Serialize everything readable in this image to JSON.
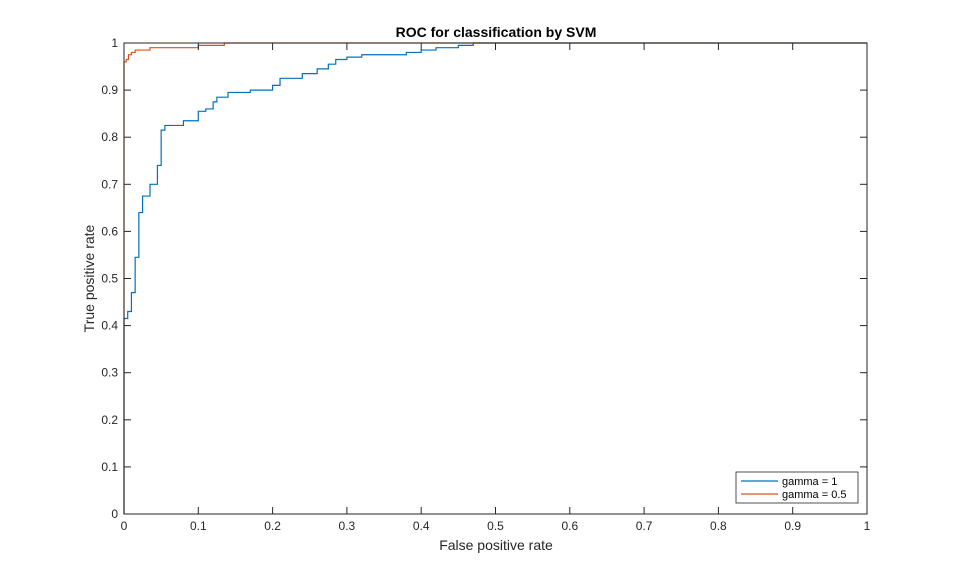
{
  "chart_data": {
    "type": "line",
    "title": "ROC for classification by SVM",
    "xlabel": "False positive rate",
    "ylabel": "True positive rate",
    "xlim": [
      0,
      1
    ],
    "ylim": [
      0,
      1
    ],
    "xticks": [
      0,
      0.1,
      0.2,
      0.3,
      0.4,
      0.5,
      0.6,
      0.7,
      0.8,
      0.9,
      1
    ],
    "yticks": [
      0,
      0.1,
      0.2,
      0.3,
      0.4,
      0.5,
      0.6,
      0.7,
      0.8,
      0.9,
      1
    ],
    "xtick_labels": [
      "0",
      "0.1",
      "0.2",
      "0.3",
      "0.4",
      "0.5",
      "0.6",
      "0.7",
      "0.8",
      "0.9",
      "1"
    ],
    "ytick_labels": [
      "0",
      "0.1",
      "0.2",
      "0.3",
      "0.4",
      "0.5",
      "0.6",
      "0.7",
      "0.8",
      "0.9",
      "1"
    ],
    "grid": false,
    "legend_position": "bottom-right",
    "series": [
      {
        "name": "gamma = 1",
        "color": "#0072BD",
        "points": [
          [
            0,
            0
          ],
          [
            0,
            0.415
          ],
          [
            0.005,
            0.415
          ],
          [
            0.005,
            0.43
          ],
          [
            0.01,
            0.43
          ],
          [
            0.01,
            0.47
          ],
          [
            0.015,
            0.47
          ],
          [
            0.015,
            0.545
          ],
          [
            0.02,
            0.545
          ],
          [
            0.02,
            0.64
          ],
          [
            0.025,
            0.64
          ],
          [
            0.025,
            0.675
          ],
          [
            0.035,
            0.675
          ],
          [
            0.035,
            0.7
          ],
          [
            0.045,
            0.7
          ],
          [
            0.045,
            0.74
          ],
          [
            0.05,
            0.74
          ],
          [
            0.05,
            0.815
          ],
          [
            0.055,
            0.815
          ],
          [
            0.055,
            0.825
          ],
          [
            0.08,
            0.825
          ],
          [
            0.08,
            0.835
          ],
          [
            0.1,
            0.835
          ],
          [
            0.1,
            0.855
          ],
          [
            0.11,
            0.855
          ],
          [
            0.11,
            0.86
          ],
          [
            0.12,
            0.86
          ],
          [
            0.12,
            0.875
          ],
          [
            0.125,
            0.875
          ],
          [
            0.125,
            0.885
          ],
          [
            0.14,
            0.885
          ],
          [
            0.14,
            0.895
          ],
          [
            0.17,
            0.895
          ],
          [
            0.17,
            0.9
          ],
          [
            0.2,
            0.9
          ],
          [
            0.2,
            0.91
          ],
          [
            0.21,
            0.91
          ],
          [
            0.21,
            0.925
          ],
          [
            0.24,
            0.925
          ],
          [
            0.24,
            0.935
          ],
          [
            0.26,
            0.935
          ],
          [
            0.26,
            0.945
          ],
          [
            0.275,
            0.945
          ],
          [
            0.275,
            0.955
          ],
          [
            0.285,
            0.955
          ],
          [
            0.285,
            0.965
          ],
          [
            0.3,
            0.965
          ],
          [
            0.3,
            0.97
          ],
          [
            0.32,
            0.97
          ],
          [
            0.32,
            0.975
          ],
          [
            0.38,
            0.975
          ],
          [
            0.38,
            0.98
          ],
          [
            0.4,
            0.98
          ],
          [
            0.4,
            0.985
          ],
          [
            0.42,
            0.985
          ],
          [
            0.42,
            0.99
          ],
          [
            0.45,
            0.99
          ],
          [
            0.45,
            0.995
          ],
          [
            0.47,
            0.995
          ],
          [
            0.47,
            1
          ],
          [
            1,
            1
          ]
        ]
      },
      {
        "name": "gamma = 0.5",
        "color": "#D95319",
        "points": [
          [
            0,
            0
          ],
          [
            0,
            0.96
          ],
          [
            0.003,
            0.96
          ],
          [
            0.003,
            0.965
          ],
          [
            0.006,
            0.965
          ],
          [
            0.006,
            0.975
          ],
          [
            0.01,
            0.975
          ],
          [
            0.01,
            0.98
          ],
          [
            0.015,
            0.98
          ],
          [
            0.015,
            0.985
          ],
          [
            0.035,
            0.985
          ],
          [
            0.035,
            0.99
          ],
          [
            0.1,
            0.99
          ],
          [
            0.1,
            0.995
          ],
          [
            0.135,
            0.995
          ],
          [
            0.135,
            1
          ],
          [
            1,
            1
          ]
        ]
      }
    ]
  }
}
